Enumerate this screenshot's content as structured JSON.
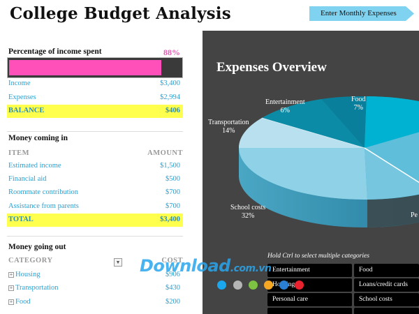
{
  "header": {
    "title": "College Budget Analysis",
    "nav_button": "Enter Monthly Expenses"
  },
  "spent": {
    "title": "Percentage of income spent",
    "percent_label": "88%",
    "percent_value": 0.88,
    "rows": [
      {
        "label": "Income",
        "value": "$3,400"
      },
      {
        "label": "Expenses",
        "value": "$2,994"
      }
    ],
    "balance": {
      "label": "BALANCE",
      "value": "$406"
    }
  },
  "income": {
    "title": "Money coming in",
    "col_item": "ITEM",
    "col_amount": "AMOUNT",
    "rows": [
      {
        "label": "Estimated income",
        "value": "$1,500"
      },
      {
        "label": "Financial aid",
        "value": "$500"
      },
      {
        "label": "Roommate contribution",
        "value": "$700"
      },
      {
        "label": "Assistance from parents",
        "value": "$700"
      }
    ],
    "total": {
      "label": "TOTAL",
      "value": "$3,400"
    }
  },
  "outgo": {
    "title": "Money going out",
    "col_category": "CATEGORY",
    "col_cost": "COST",
    "rows": [
      {
        "label": "Housing",
        "value": "$906"
      },
      {
        "label": "Transportation",
        "value": "$430"
      },
      {
        "label": "Food",
        "value": "$200"
      }
    ]
  },
  "chart_data": {
    "type": "pie",
    "title": "Expenses Overview",
    "slices": [
      {
        "label": "Food",
        "percent": "7%",
        "value": 7
      },
      {
        "label": "Entertainment",
        "percent": "6%",
        "value": 6
      },
      {
        "label": "Transportation",
        "percent": "14%",
        "value": 14
      },
      {
        "label": "School costs",
        "percent": "32%",
        "value": 32
      }
    ],
    "partial_label": "Pe"
  },
  "slicer": {
    "hint": "Hold Ctrl to select multiple categories",
    "items": [
      "Entertainment",
      "Food",
      "Housing",
      "Loans/credit cards",
      "Personal care",
      "School costs"
    ]
  },
  "watermark": {
    "main": "Download",
    "suffix": ".com.vn"
  },
  "dots": [
    "#1aa7ec",
    "#b5b5b5",
    "#7dc242",
    "#f5a623",
    "#2a7fd4",
    "#e8222e"
  ]
}
